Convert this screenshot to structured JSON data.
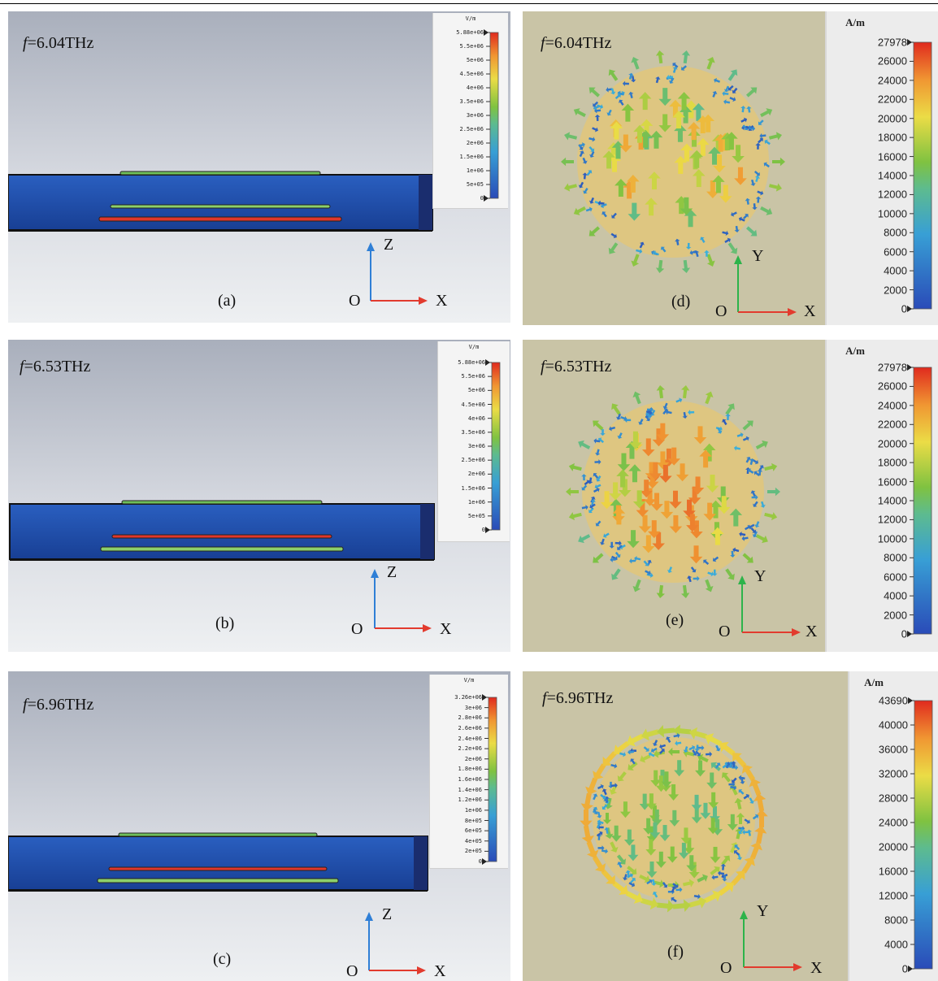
{
  "panels": [
    {
      "id": "a",
      "freq_prefix": "f",
      "freq_value": "=6.04THz",
      "label": "(a)",
      "axes": {
        "origin": "O",
        "h": "X",
        "v": "Z"
      }
    },
    {
      "id": "b",
      "freq_prefix": "f",
      "freq_value": "=6.53THz",
      "label": "(b)",
      "axes": {
        "origin": "O",
        "h": "X",
        "v": "Z"
      }
    },
    {
      "id": "c",
      "freq_prefix": "f",
      "freq_value": "=6.96THz",
      "label": "(c)",
      "axes": {
        "origin": "O",
        "h": "X",
        "v": "Z"
      }
    },
    {
      "id": "d",
      "freq_prefix": "f",
      "freq_value": "=6.04THz",
      "label": "(d)",
      "axes": {
        "origin": "O",
        "h": "X",
        "v": "Y"
      }
    },
    {
      "id": "e",
      "freq_prefix": "f",
      "freq_value": "=6.53THz",
      "label": "(e)",
      "axes": {
        "origin": "O",
        "h": "X",
        "v": "Y"
      }
    },
    {
      "id": "f",
      "freq_prefix": "f",
      "freq_value": "=6.96THz",
      "label": "(f)",
      "axes": {
        "origin": "O",
        "h": "X",
        "v": "Y"
      }
    }
  ],
  "legends": {
    "e_field_1": {
      "unit": "V/m",
      "ticks": [
        "5.88e+06",
        "5.5e+06",
        "5e+06",
        "4.5e+06",
        "4e+06",
        "3.5e+06",
        "3e+06",
        "2.5e+06",
        "2e+06",
        "1.5e+06",
        "1e+06",
        "5e+05",
        "0"
      ]
    },
    "e_field_2": {
      "unit": "V/m",
      "ticks": [
        "5.88e+06",
        "5.5e+06",
        "5e+06",
        "4.5e+06",
        "4e+06",
        "3.5e+06",
        "3e+06",
        "2.5e+06",
        "2e+06",
        "1.5e+06",
        "1e+06",
        "5e+05",
        "0"
      ]
    },
    "e_field_3": {
      "unit": "V/m",
      "ticks": [
        "3.26e+06",
        "3e+06",
        "2.8e+06",
        "2.6e+06",
        "2.4e+06",
        "2.2e+06",
        "2e+06",
        "1.8e+06",
        "1.6e+06",
        "1.4e+06",
        "1.2e+06",
        "1e+06",
        "8e+05",
        "6e+05",
        "4e+05",
        "2e+05",
        "0"
      ]
    },
    "h_field_1": {
      "unit": "A/m",
      "ticks": [
        "27978",
        "26000",
        "24000",
        "22000",
        "20000",
        "18000",
        "16000",
        "14000",
        "12000",
        "10000",
        "8000",
        "6000",
        "4000",
        "2000",
        "0"
      ]
    },
    "h_field_2": {
      "unit": "A/m",
      "ticks": [
        "27978",
        "26000",
        "24000",
        "22000",
        "20000",
        "18000",
        "16000",
        "14000",
        "12000",
        "10000",
        "8000",
        "6000",
        "4000",
        "2000",
        "0"
      ]
    },
    "h_field_3": {
      "unit": "A/m",
      "ticks": [
        "43690",
        "40000",
        "36000",
        "32000",
        "28000",
        "24000",
        "20000",
        "16000",
        "12000",
        "8000",
        "4000",
        "0"
      ]
    }
  },
  "colors": {
    "scale_high": "#e02a1e",
    "scale_mid": "#7fc241",
    "scale_low": "#2a4bb8",
    "substrate": "#1f4ea8",
    "axis_blue": "#2f7fd6",
    "axis_red": "#e23b2e",
    "axis_green": "#2db34a"
  }
}
